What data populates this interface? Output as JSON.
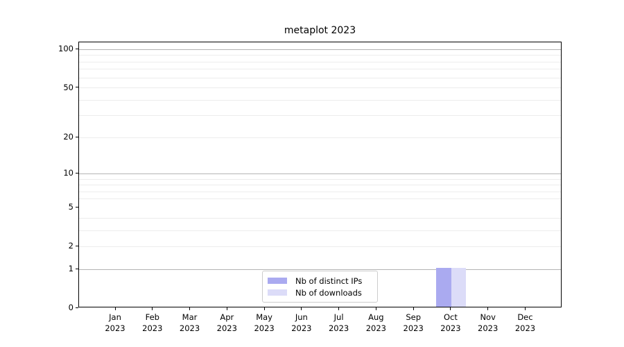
{
  "chart_data": {
    "type": "bar",
    "title": "metaplot 2023",
    "categories": [
      "Jan 2023",
      "Feb 2023",
      "Mar 2023",
      "Apr 2023",
      "May 2023",
      "Jun 2023",
      "Jul 2023",
      "Aug 2023",
      "Sep 2023",
      "Oct 2023",
      "Nov 2023",
      "Dec 2023"
    ],
    "series": [
      {
        "name": "Nb of distinct IPs",
        "color": "#aaaaf0",
        "values": [
          0,
          0,
          0,
          0,
          0,
          0,
          0,
          0,
          0,
          1,
          0,
          0
        ]
      },
      {
        "name": "Nb of downloads",
        "color": "#dcdcf8",
        "values": [
          0,
          0,
          0,
          0,
          0,
          0,
          0,
          0,
          0,
          1,
          0,
          0
        ]
      }
    ],
    "xlabel": "",
    "ylabel": "",
    "yscale": "log1p",
    "ylim": [
      0,
      100
    ],
    "yticks": [
      0,
      1,
      2,
      5,
      10,
      20,
      50,
      100
    ],
    "gridlines_major": [
      1,
      10,
      100
    ],
    "gridlines_minor": [
      2,
      3,
      4,
      6,
      7,
      8,
      9,
      20,
      30,
      40,
      50,
      60,
      70,
      80,
      90
    ],
    "grid": "horizontal",
    "legend_position": "lower center"
  },
  "colors": {
    "background": "#ffffff",
    "grid_major": "#b3b3b3",
    "grid_minor": "#ececec",
    "axis": "#000000",
    "text": "#000000",
    "legend_border": "#cccccc"
  }
}
